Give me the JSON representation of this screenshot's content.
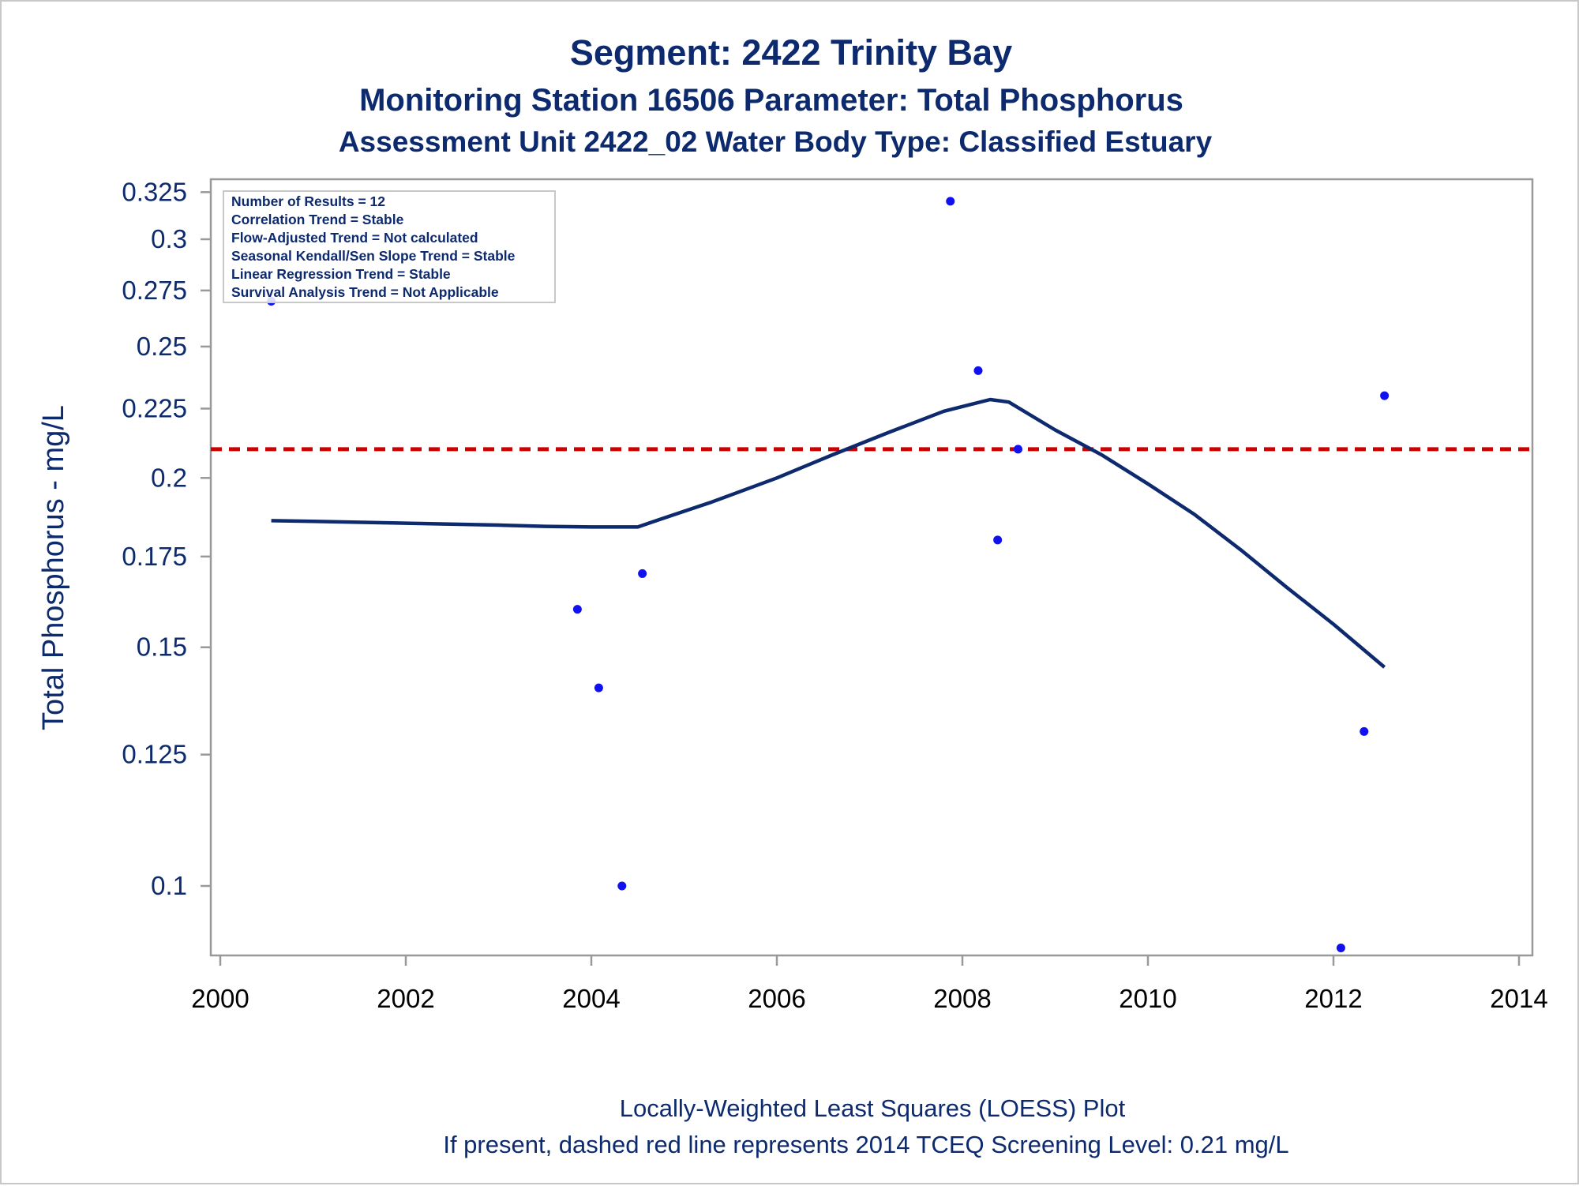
{
  "title": "Segment: 2422  Trinity Bay",
  "subtitle1": "Monitoring Station 16506 Parameter: Total Phosphorus",
  "subtitle2": "Assessment Unit 2422_02   Water Body Type: Classified Estuary",
  "footnote1": "Locally-Weighted Least Squares (LOESS) Plot",
  "footnote2": "If present, dashed red line represents 2014 TCEQ Screening Level: 0.21 mg/L",
  "stats": [
    "Number of Results = 12",
    "Correlation Trend = Stable",
    "Flow-Adjusted Trend = Not calculated",
    "Seasonal Kendall/Sen Slope Trend = Stable",
    "Linear Regression Trend = Stable",
    "Survival Analysis Trend = Not Applicable"
  ],
  "colors": {
    "points": "#1010f0",
    "loess": "#0d2a6e",
    "screening": "#cc0000",
    "text": "#0d2a6e",
    "axis": "#999999"
  },
  "chart_data": {
    "type": "scatter",
    "ylabel": "Total Phosphorus - mg/L",
    "xlabel": "",
    "y_scale": "log",
    "xlim": [
      2000,
      2014
    ],
    "ylim": [
      0.09,
      0.33
    ],
    "x_ticks": [
      "2000",
      "2002",
      "2004",
      "2006",
      "2008",
      "2010",
      "2012",
      "2014"
    ],
    "y_ticks": [
      "0.1",
      "0.125",
      "0.15",
      "0.175",
      "0.2",
      "0.225",
      "0.25",
      "0.275",
      "0.3",
      "0.325"
    ],
    "grid": false,
    "screening_level": 0.21,
    "points": [
      {
        "x": 2000.55,
        "y": 0.27
      },
      {
        "x": 2003.85,
        "y": 0.16
      },
      {
        "x": 2004.08,
        "y": 0.14
      },
      {
        "x": 2004.33,
        "y": 0.1
      },
      {
        "x": 2004.55,
        "y": 0.17
      },
      {
        "x": 2007.87,
        "y": 0.32
      },
      {
        "x": 2008.17,
        "y": 0.24
      },
      {
        "x": 2008.38,
        "y": 0.18
      },
      {
        "x": 2008.6,
        "y": 0.21
      },
      {
        "x": 2012.08,
        "y": 0.09
      },
      {
        "x": 2012.33,
        "y": 0.13
      },
      {
        "x": 2012.55,
        "y": 0.23
      }
    ],
    "loess_line": [
      {
        "x": 2000.55,
        "y": 0.186
      },
      {
        "x": 2001.0,
        "y": 0.1858
      },
      {
        "x": 2002.0,
        "y": 0.1852
      },
      {
        "x": 2003.0,
        "y": 0.1846
      },
      {
        "x": 2003.5,
        "y": 0.1842
      },
      {
        "x": 2004.0,
        "y": 0.184
      },
      {
        "x": 2004.5,
        "y": 0.184
      },
      {
        "x": 2004.75,
        "y": 0.1865
      },
      {
        "x": 2005.3,
        "y": 0.192
      },
      {
        "x": 2006.0,
        "y": 0.2
      },
      {
        "x": 2006.6,
        "y": 0.208
      },
      {
        "x": 2007.2,
        "y": 0.216
      },
      {
        "x": 2007.8,
        "y": 0.224
      },
      {
        "x": 2008.3,
        "y": 0.2285
      },
      {
        "x": 2008.5,
        "y": 0.2275
      },
      {
        "x": 2009.0,
        "y": 0.217
      },
      {
        "x": 2009.5,
        "y": 0.208
      },
      {
        "x": 2010.0,
        "y": 0.198
      },
      {
        "x": 2010.5,
        "y": 0.188
      },
      {
        "x": 2011.0,
        "y": 0.177
      },
      {
        "x": 2011.5,
        "y": 0.166
      },
      {
        "x": 2012.0,
        "y": 0.156
      },
      {
        "x": 2012.55,
        "y": 0.145
      }
    ]
  }
}
